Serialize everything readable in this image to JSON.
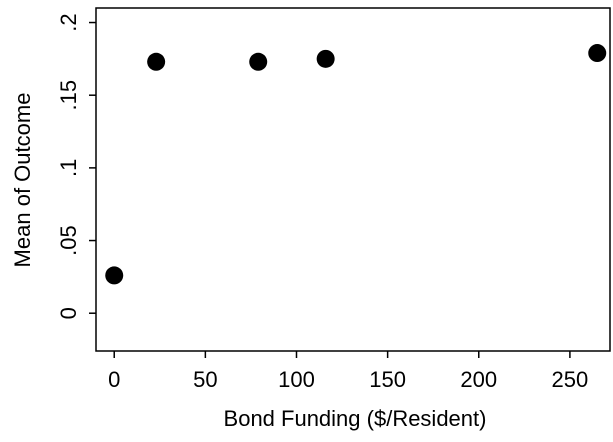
{
  "chart_data": {
    "type": "scatter",
    "x_label": "Bond Funding ($/Resident)",
    "y_label": "Mean of Outcome",
    "x": [
      0,
      23,
      79,
      116,
      265
    ],
    "values": [
      0.026,
      0.173,
      0.173,
      0.175,
      0.179
    ],
    "color": "#000000",
    "xlim": [
      -10,
      272
    ],
    "ylim": [
      -0.026,
      0.21
    ],
    "xticks": [
      0,
      50,
      100,
      150,
      200,
      250
    ],
    "yticks": [
      0,
      {
        "value": 0.05,
        "label": ".05"
      },
      {
        "value": 0.1,
        "label": ".1"
      },
      {
        "value": 0.15,
        "label": ".15"
      },
      {
        "value": 0.2,
        "label": ".2"
      }
    ]
  }
}
